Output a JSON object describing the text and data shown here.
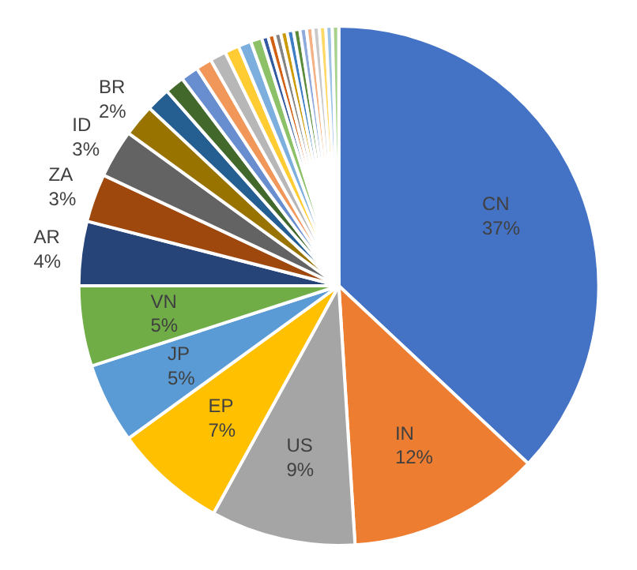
{
  "chart_data": {
    "type": "pie",
    "categories": [
      "CN",
      "IN",
      "US",
      "EP",
      "JP",
      "VN",
      "AR",
      "ZA",
      "ID",
      "BR",
      null,
      null,
      null,
      null,
      null,
      null,
      null,
      null,
      null,
      null,
      null,
      null,
      null,
      null,
      null,
      null,
      null,
      null,
      null,
      null
    ],
    "values": [
      37,
      12,
      9,
      7,
      5,
      5,
      4,
      3,
      3,
      2,
      1.5,
      1.2,
      1.1,
      1,
      1,
      0.9,
      0.8,
      0.7,
      0.4,
      0.4,
      0.4,
      0.4,
      0.4,
      0.4,
      0.4,
      0.4,
      0.4,
      0.4,
      0.4,
      0.4
    ],
    "value_labels": [
      "37%",
      "12%",
      "9%",
      "7%",
      "5%",
      "5%",
      "4%",
      "3%",
      "3%",
      "2%",
      null,
      null,
      null,
      null,
      null,
      null,
      null,
      null,
      null,
      null,
      null,
      null,
      null,
      null,
      null,
      null,
      null,
      null,
      null,
      null
    ],
    "colors": [
      "#4472c4",
      "#ed7d31",
      "#a5a5a5",
      "#ffc000",
      "#5b9bd5",
      "#70ad47",
      "#264478",
      "#9e480e",
      "#636363",
      "#997300",
      "#255e91",
      "#43682b",
      "#698ed0",
      "#f1975a",
      "#b7b7b7",
      "#ffcd33",
      "#7cafdd",
      "#8cc168",
      "#335aa1",
      "#d26012",
      "#848484",
      "#cc9a00",
      "#3c7dc4",
      "#5a8a3a",
      "#8faadc",
      "#f4b183",
      "#c9c9c9",
      "#ffd966",
      "#9dc3e6",
      "#a9d18e"
    ]
  }
}
